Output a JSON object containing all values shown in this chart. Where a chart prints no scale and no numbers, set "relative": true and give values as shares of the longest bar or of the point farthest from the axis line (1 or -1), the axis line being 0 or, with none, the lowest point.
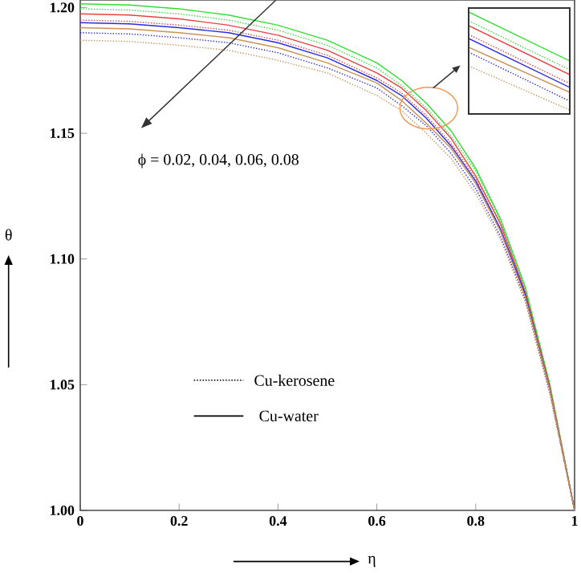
{
  "chart_data": [
    {
      "type": "line",
      "xlabel": "η",
      "ylabel": "θ",
      "annotations": [
        "ϕ = 0.02, 0.04, 0.06, 0.08",
        "Cu-kerosene",
        "Cu-water"
      ],
      "x": [
        0,
        0.1,
        0.2,
        0.3,
        0.4,
        0.5,
        0.6,
        0.65,
        0.7,
        0.75,
        0.8,
        0.85,
        0.9,
        0.95,
        1.0
      ],
      "series": [
        {
          "color": "#33dd33",
          "line_style": "solid",
          "values": [
            1.2015,
            1.201,
            1.1995,
            1.197,
            1.193,
            1.187,
            1.178,
            1.171,
            1.162,
            1.151,
            1.136,
            1.116,
            1.089,
            1.05,
            1.0
          ]
        },
        {
          "color": "#33dd33",
          "line_style": "dotted",
          "values": [
            1.1995,
            1.199,
            1.1975,
            1.195,
            1.191,
            1.185,
            1.176,
            1.169,
            1.16,
            1.149,
            1.135,
            1.115,
            1.088,
            1.05,
            1.0
          ]
        },
        {
          "color": "#e84040",
          "line_style": "solid",
          "values": [
            1.1975,
            1.197,
            1.1955,
            1.193,
            1.189,
            1.183,
            1.174,
            1.168,
            1.159,
            1.148,
            1.133,
            1.114,
            1.087,
            1.049,
            1.0
          ]
        },
        {
          "color": "#e84040",
          "line_style": "dotted",
          "values": [
            1.195,
            1.1945,
            1.193,
            1.191,
            1.187,
            1.181,
            1.172,
            1.166,
            1.157,
            1.146,
            1.132,
            1.112,
            1.086,
            1.048,
            1.0
          ]
        },
        {
          "color": "#2a2ae0",
          "line_style": "solid",
          "values": [
            1.194,
            1.1935,
            1.192,
            1.19,
            1.186,
            1.18,
            1.171,
            1.165,
            1.156,
            1.145,
            1.131,
            1.112,
            1.086,
            1.048,
            1.0
          ]
        },
        {
          "color": "#2a2ae0",
          "line_style": "dotted",
          "values": [
            1.19,
            1.1895,
            1.188,
            1.186,
            1.182,
            1.176,
            1.168,
            1.161,
            1.153,
            1.142,
            1.128,
            1.109,
            1.084,
            1.047,
            1.0
          ]
        },
        {
          "color": "#c8925a",
          "line_style": "solid",
          "values": [
            1.192,
            1.1915,
            1.19,
            1.188,
            1.184,
            1.178,
            1.17,
            1.163,
            1.154,
            1.144,
            1.13,
            1.111,
            1.085,
            1.048,
            1.0
          ]
        },
        {
          "color": "#c8925a",
          "line_style": "dotted",
          "values": [
            1.187,
            1.1865,
            1.185,
            1.183,
            1.179,
            1.174,
            1.165,
            1.159,
            1.15,
            1.14,
            1.126,
            1.108,
            1.083,
            1.046,
            1.0
          ]
        }
      ],
      "xlim": [
        0,
        1
      ],
      "ylim": [
        1.0,
        1.203
      ],
      "xticks": [
        0,
        0.2,
        0.4,
        0.6,
        0.8,
        1
      ],
      "yticks": [
        {
          "value": 1.0,
          "label": "1.00"
        },
        {
          "value": 1.05,
          "label": "1.05"
        },
        {
          "value": 1.1,
          "label": "1.10"
        },
        {
          "value": 1.15,
          "label": "1.15"
        },
        {
          "value": 1.2,
          "label": "1.20"
        }
      ]
    },
    {
      "type": "line",
      "relative": true,
      "categories": [
        null,
        null
      ],
      "series": [
        {
          "color": "#33dd33",
          "line_style": "solid",
          "values": [
            1.0,
            0.5
          ]
        },
        {
          "color": "#33dd33",
          "line_style": "dotted",
          "values": [
            0.91,
            0.41
          ]
        },
        {
          "color": "#e84040",
          "line_style": "solid",
          "values": [
            0.86,
            0.36
          ]
        },
        {
          "color": "#e84040",
          "line_style": "dotted",
          "values": [
            0.77,
            0.27
          ]
        },
        {
          "color": "#2a2ae0",
          "line_style": "solid",
          "values": [
            0.73,
            0.23
          ]
        },
        {
          "color": "#2a2ae0",
          "line_style": "dotted",
          "values": [
            0.59,
            0.09
          ]
        },
        {
          "color": "#c8925a",
          "line_style": "solid",
          "values": [
            0.64,
            0.18
          ]
        },
        {
          "color": "#c8925a",
          "line_style": "dotted",
          "values": [
            0.45,
            0.0
          ]
        }
      ]
    }
  ]
}
